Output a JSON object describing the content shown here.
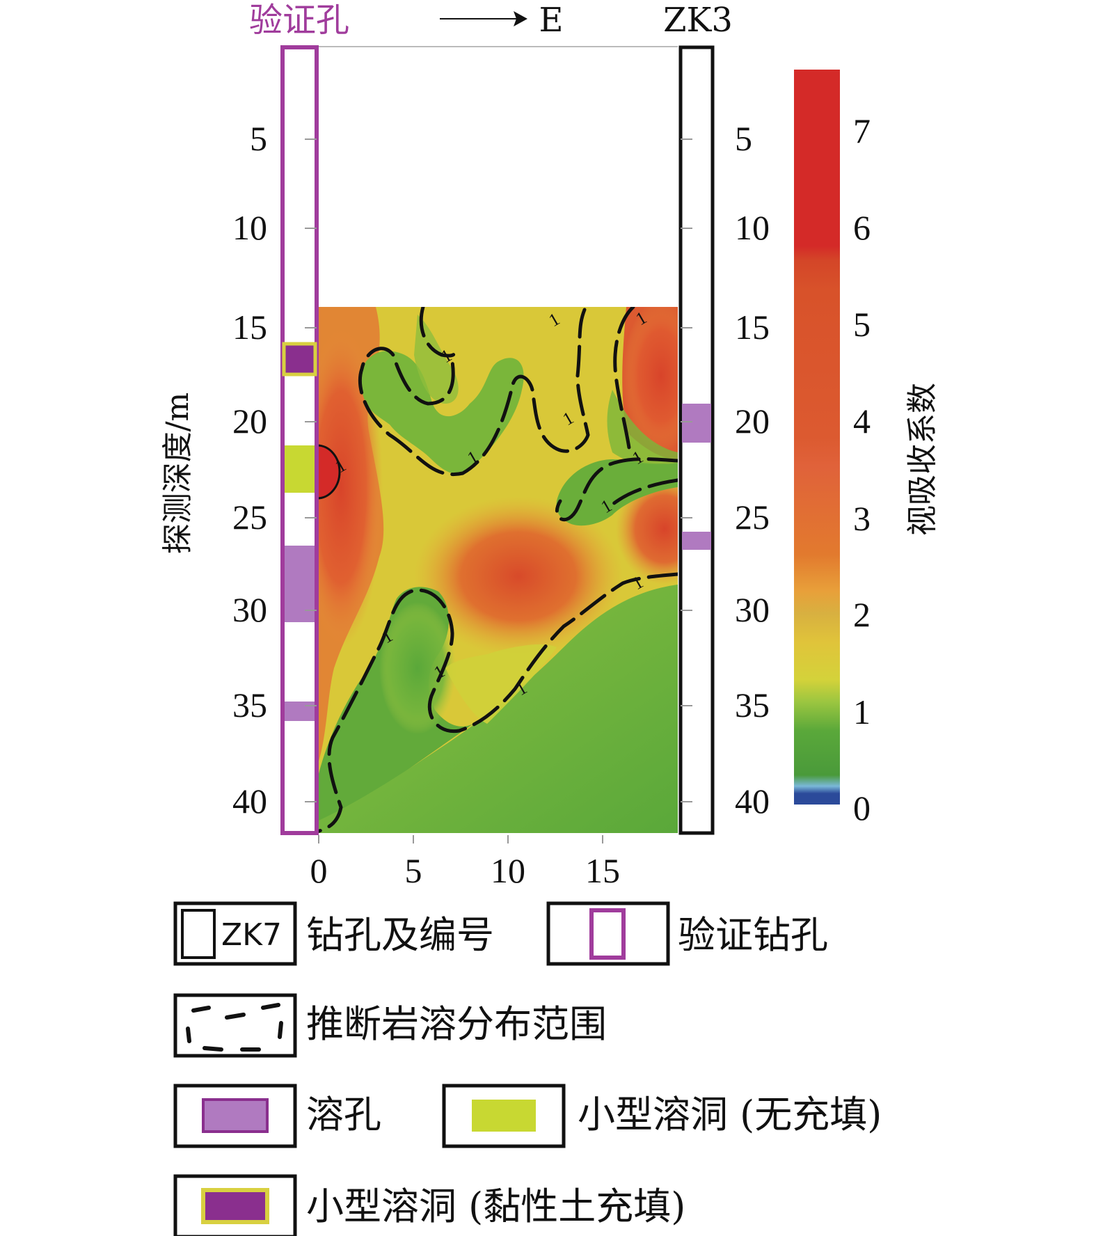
{
  "header": {
    "left_borehole": "验证孔",
    "direction": "E",
    "right_borehole": "ZK3"
  },
  "axes": {
    "ylabel": "探测深度/m",
    "depth_ticks_left": [
      "5",
      "10",
      "15",
      "20",
      "25",
      "30",
      "35",
      "40"
    ],
    "depth_ticks_right": [
      "5",
      "10",
      "15",
      "20",
      "25",
      "30",
      "35",
      "40"
    ],
    "x_ticks": [
      "0",
      "5",
      "10",
      "15"
    ],
    "contour_label": "1"
  },
  "colorbar": {
    "label": "视吸收系数",
    "ticks": [
      "0",
      "1",
      "2",
      "3",
      "4",
      "5",
      "6",
      "7"
    ]
  },
  "legend": {
    "borehole_label": "钻孔及编号",
    "borehole_sample": "ZK7",
    "verify_label": "验证钻孔",
    "karst_range_label": "推断岩溶分布范围",
    "solution_hole_label": "溶孔",
    "cave_unfilled_label": "小型溶洞 (无充填)",
    "cave_clay_label": "小型溶洞 (黏性土充填)"
  },
  "colors": {
    "verify_border": "#a03c9c",
    "solution_hole": "#b07ac0",
    "cave_unfilled": "#c8d832",
    "cave_clay_fill": "#8a2f8e",
    "cave_clay_border": "#d8d040"
  }
}
